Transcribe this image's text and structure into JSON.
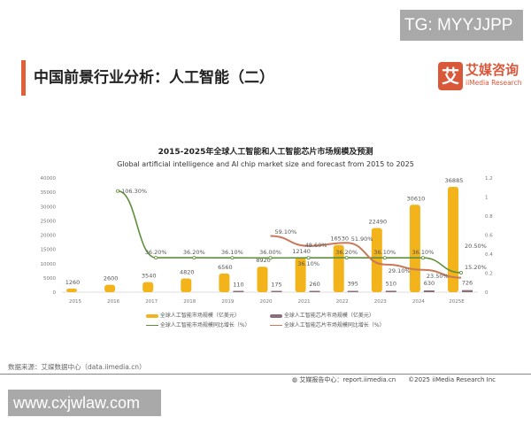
{
  "watermark_top": "TG: MYYJJPP",
  "watermark_bottom": "www.cxjwlaw.com",
  "page_title": "中国前景行业分析：人工智能（二）",
  "logo": {
    "mark": "艾",
    "cn": "艾媒咨询",
    "en": "iiMedia Research"
  },
  "source": "数据来源：艾媒数据中心（data.iimedia.cn）",
  "footer": "艾媒报告中心：report.iimedia.cn　　©2025  iiMedia Research  Inc",
  "chart_data": {
    "type": "bar+line",
    "title": "2015-2025年全球人工智能和人工智能芯片市场规模及预测",
    "subtitle": "Global artificial intelligence and AI chip market size and forecast from 2015 to 2025",
    "categories": [
      "2015",
      "2016",
      "2017",
      "2018",
      "2019",
      "2020",
      "2021",
      "2022",
      "2023",
      "2024",
      "2025E"
    ],
    "y_left": {
      "range": [
        0,
        40000
      ],
      "ticks": [
        "0",
        "5000",
        "10000",
        "15000",
        "20000",
        "25000",
        "30000",
        "35000",
        "40000"
      ]
    },
    "y_right": {
      "range": [
        0,
        1.2
      ],
      "ticks": [
        "0",
        "0.2",
        "0.4",
        "0.6",
        "0.8",
        "1",
        "1.2"
      ]
    },
    "series": [
      {
        "name": "全球人工智能市场规模（亿美元）",
        "type": "bar",
        "color": "#f2b31b",
        "axis": "left",
        "values": [
          1260,
          2600,
          3540,
          4820,
          6560,
          8920,
          12140,
          16530,
          22490,
          30610,
          36885
        ],
        "labels": [
          "1260",
          "2600",
          "3540",
          "4820",
          "6560",
          "8920",
          "12140",
          "16530",
          "22490",
          "30610",
          "36885"
        ]
      },
      {
        "name": "全球人工智能芯片市场规模（亿美元）",
        "type": "bar",
        "color": "#8a6f7a",
        "axis": "left",
        "values": [
          null,
          null,
          null,
          null,
          110,
          175,
          260,
          395,
          510,
          630,
          726
        ],
        "labels": [
          "",
          "",
          "",
          "",
          "110",
          "175",
          "260",
          "395",
          "510",
          "630",
          "726"
        ]
      },
      {
        "name": "全球人工智能市场规模同比增长（%）",
        "type": "line",
        "color": "#5f8f3a",
        "axis": "right",
        "values": [
          null,
          106.3,
          36.2,
          36.2,
          36.1,
          36.0,
          36.1,
          36.2,
          36.1,
          36.1,
          20.5
        ],
        "labels": [
          "",
          "106.30%",
          "36.20%",
          "36.20%",
          "36.10%",
          "36.00%",
          "36.10%",
          "36.20%",
          "36.10%",
          "36.10%",
          "20.50%"
        ]
      },
      {
        "name": "全球人工智能芯片市场规模同比增长（%）",
        "type": "line",
        "color": "#c8795a",
        "axis": "right",
        "values": [
          null,
          null,
          null,
          null,
          null,
          59.1,
          48.6,
          51.9,
          29.1,
          23.5,
          15.2
        ],
        "labels": [
          "",
          "",
          "",
          "",
          "",
          "59.10%",
          "48.60%",
          "51.90%",
          "29.10%",
          "23.50%",
          "15.20%"
        ]
      }
    ],
    "legend": "bottom",
    "grid": false
  }
}
